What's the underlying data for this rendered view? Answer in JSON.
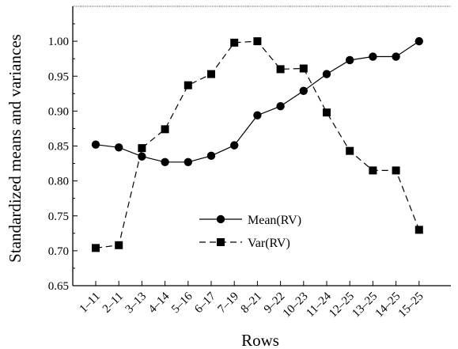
{
  "chart_data": {
    "type": "line",
    "title": "",
    "xlabel": "Rows",
    "ylabel": "Standardized means and variances",
    "categories": [
      "1–11",
      "2–11",
      "3–13",
      "4–14",
      "5–16",
      "6–17",
      "7–19",
      "8–21",
      "9–22",
      "10–23",
      "11–24",
      "12–25",
      "13–25",
      "14–25",
      "15–25"
    ],
    "ylim": [
      0.65,
      1.05
    ],
    "yticks": [
      "0.65",
      "0.70",
      "0.75",
      "0.80",
      "0.85",
      "0.90",
      "0.95",
      "1.00"
    ],
    "grid": false,
    "legend_position": "center-right",
    "series": [
      {
        "name": "Mean(RV)",
        "marker": "circle",
        "line_style": "solid",
        "color": "#000000",
        "values": [
          0.852,
          0.848,
          0.835,
          0.827,
          0.827,
          0.836,
          0.851,
          0.894,
          0.907,
          0.929,
          0.953,
          0.973,
          0.978,
          0.978,
          1.0
        ]
      },
      {
        "name": "Var(RV)",
        "marker": "square",
        "line_style": "dashed",
        "color": "#000000",
        "values": [
          0.704,
          0.708,
          0.847,
          0.874,
          0.937,
          0.953,
          0.998,
          1.0,
          0.96,
          0.961,
          0.898,
          0.843,
          0.815,
          0.815,
          0.73
        ]
      }
    ]
  }
}
